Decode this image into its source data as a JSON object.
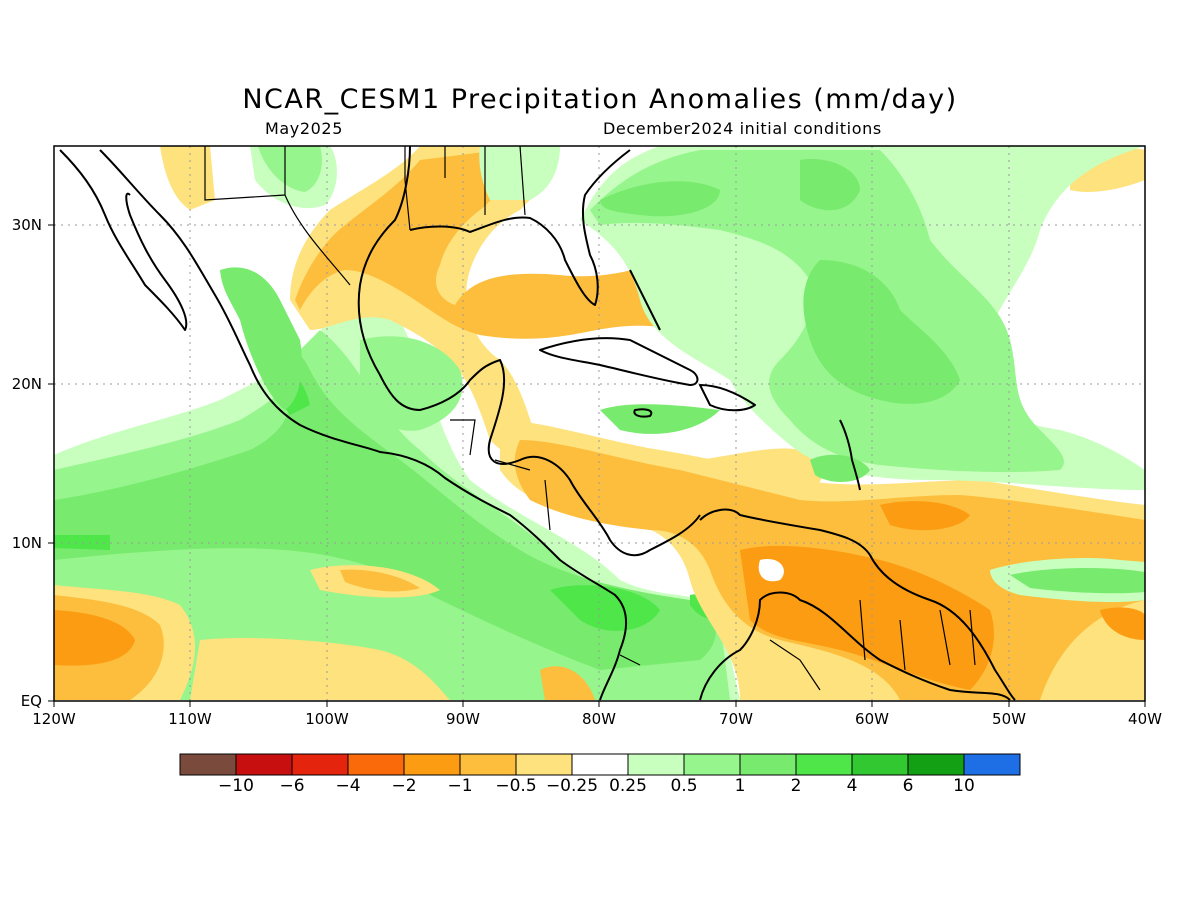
{
  "title": "NCAR_CESM1 Precipitation Anomalies (mm/day)",
  "subtitle_left": "May2025",
  "subtitle_right": "December2024 initial conditions",
  "axes": {
    "lat_labels": [
      "30N",
      "20N",
      "10N",
      "EQ"
    ],
    "lon_labels": [
      "120W",
      "110W",
      "100W",
      "90W",
      "80W",
      "70W",
      "60W",
      "50W",
      "40W"
    ],
    "lat_range": [
      0,
      35
    ],
    "lon_range": [
      -120,
      -40
    ],
    "gridlines": "dotted"
  },
  "colorbar": {
    "colors": [
      "#7a4b3c",
      "#c80f0f",
      "#e5240e",
      "#fa6a0a",
      "#fc9c12",
      "#fcbe3c",
      "#fde27e",
      "#ffffff",
      "#c8ffbe",
      "#96f58c",
      "#78ea6e",
      "#4fe64a",
      "#32c832",
      "#14a014",
      "#1e6ee6"
    ],
    "labels": [
      "-10",
      "-6",
      "-4",
      "-2",
      "-1",
      "-0.5",
      "-0.25",
      "0.25",
      "0.5",
      "1",
      "2",
      "4",
      "6",
      "10"
    ]
  },
  "features": {
    "coastline_color": "#000000",
    "regions": [
      "Gulf of Mexico",
      "Caribbean Sea",
      "Central America",
      "Northern South America",
      "Western Atlantic",
      "Eastern Pacific"
    ]
  }
}
